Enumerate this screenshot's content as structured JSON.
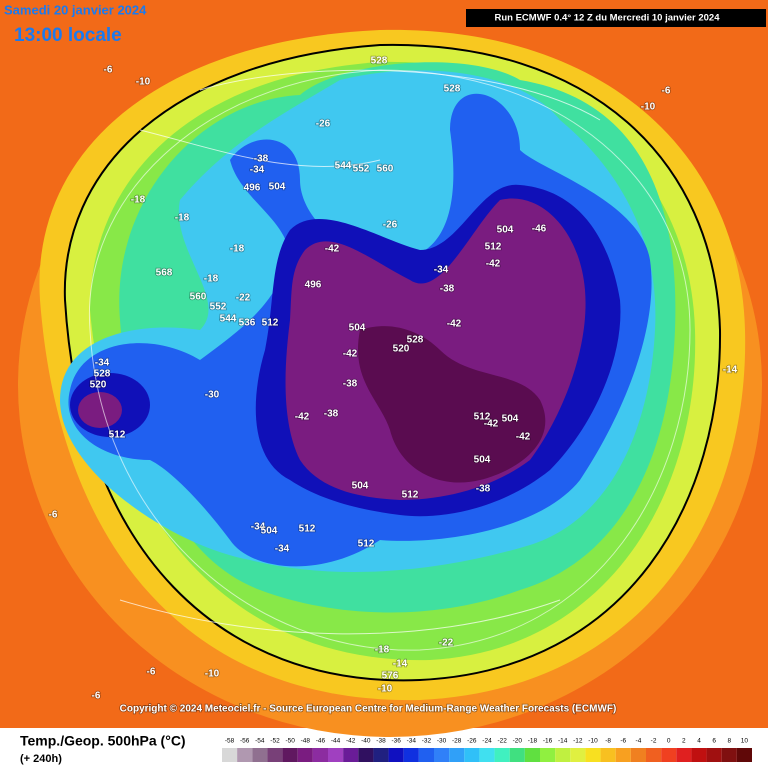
{
  "header": {
    "date": "Samedi 20 janvier 2024",
    "time": "13:00 locale",
    "run": "Run ECMWF 0.4° 12 Z du Mercredi 10 janvier 2024"
  },
  "map": {
    "copyright": "Copyright © 2024 Meteociel.fr - Source European Centre for Medium-Range Weather Forecasts (ECMWF)",
    "contour_labels": [
      "-6",
      "-10",
      "-18",
      "-18",
      "-18",
      "568",
      "-18",
      "560",
      "-22",
      "552",
      "544",
      "536",
      "512",
      "-38",
      "-34",
      "496",
      "504",
      "-26",
      "528",
      "528",
      "544",
      "552",
      "560",
      "-26",
      "-42",
      "496",
      "-34",
      "-38",
      "504",
      "-46",
      "512",
      "-42",
      "-42",
      "504",
      "528",
      "520",
      "-42",
      "-38",
      "-42",
      "-38",
      "-34",
      "528",
      "520",
      "-30",
      "512",
      "512",
      "-42",
      "504",
      "-42",
      "504",
      "-38",
      "504",
      "512",
      "-34",
      "504",
      "512",
      "-34",
      "512",
      "-22",
      "-18",
      "-14",
      "576",
      "-10",
      "-6",
      "-10",
      "-6",
      "-6",
      "-10",
      "-14",
      "-6"
    ]
  },
  "legend": {
    "title": "Temp./Geop. 500hPa (°C)",
    "lead": "(+ 240h)",
    "ticks": [
      -58,
      -56,
      -54,
      -52,
      -50,
      -48,
      -46,
      -44,
      -42,
      -40,
      -38,
      -36,
      -34,
      -32,
      -30,
      -28,
      -26,
      -24,
      -22,
      -20,
      -18,
      -16,
      -14,
      -12,
      -10,
      -8,
      -6,
      -4,
      -2,
      0,
      2,
      4,
      6,
      8,
      10
    ],
    "colors": [
      "#d8d8d8",
      "#b098b0",
      "#907090",
      "#784078",
      "#601860",
      "#7a1c80",
      "#8c2ca0",
      "#a040c0",
      "#6a1c98",
      "#301060",
      "#202080",
      "#1010c0",
      "#1030e0",
      "#2060f0",
      "#3080f8",
      "#30a0f8",
      "#30c0f8",
      "#40e0f0",
      "#40f0c0",
      "#40e080",
      "#60e040",
      "#90f040",
      "#c0f040",
      "#e0f040",
      "#f8e020",
      "#f8c020",
      "#f8a020",
      "#f08020",
      "#f06020",
      "#f04020",
      "#e02020",
      "#c01010",
      "#a01010",
      "#801010",
      "#600808"
    ]
  }
}
